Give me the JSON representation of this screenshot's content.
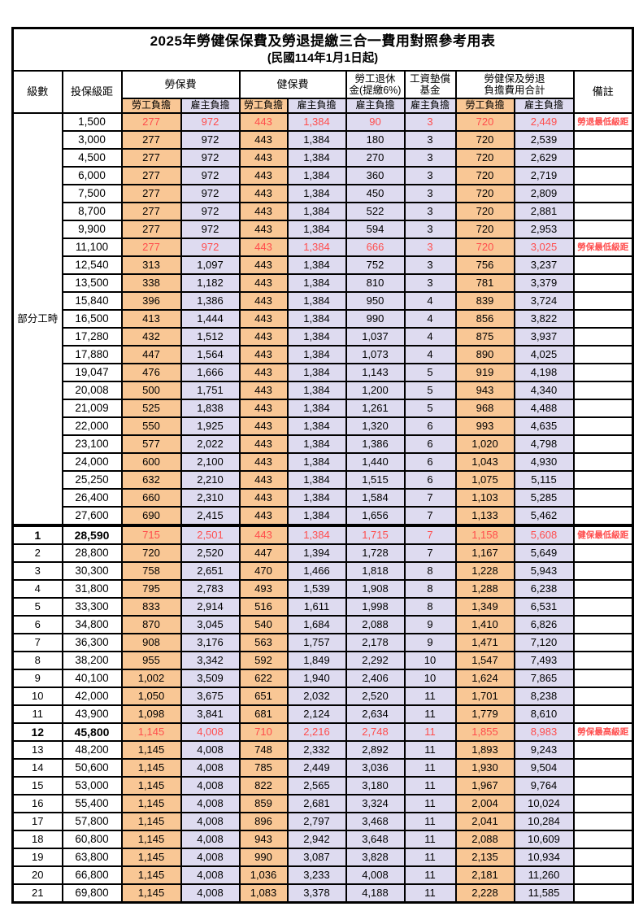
{
  "title": "2025年勞健保保費及勞退提繳三合一費用對照參考用表",
  "subtitle": "(民國114年1月1日起)",
  "header": {
    "level": "級數",
    "bracket": "投保級距",
    "labor_ins": "勞保費",
    "health_ins": "健保費",
    "pension_l1": "勞工退休",
    "pension_l2": "金(提繳6%)",
    "wage_fund_l1": "工資墊償",
    "wage_fund_l2": "基金",
    "total_l1": "勞健保及勞退",
    "total_l2": "負擔費用合計",
    "note": "備註",
    "sub_employee": "勞工負擔",
    "sub_employer": "雇主負擔"
  },
  "colors": {
    "employee_bg": "#F9C795",
    "employer_bg": "#DEDBF0",
    "highlight_text": "#FF4D4D"
  },
  "table": {
    "part_time_label": "部分工時",
    "part_time_rowspan": 23,
    "rows": [
      {
        "level": "",
        "bracket": "1,500",
        "values": [
          "277",
          "972",
          "443",
          "1,384",
          "90",
          "3",
          "720",
          "2,449"
        ],
        "note": "勞退最低級距",
        "highlight": true
      },
      {
        "level": "",
        "bracket": "3,000",
        "values": [
          "277",
          "972",
          "443",
          "1,384",
          "180",
          "3",
          "720",
          "2,539"
        ],
        "note": "",
        "highlight": false
      },
      {
        "level": "",
        "bracket": "4,500",
        "values": [
          "277",
          "972",
          "443",
          "1,384",
          "270",
          "3",
          "720",
          "2,629"
        ],
        "note": "",
        "highlight": false
      },
      {
        "level": "",
        "bracket": "6,000",
        "values": [
          "277",
          "972",
          "443",
          "1,384",
          "360",
          "3",
          "720",
          "2,719"
        ],
        "note": "",
        "highlight": false
      },
      {
        "level": "",
        "bracket": "7,500",
        "values": [
          "277",
          "972",
          "443",
          "1,384",
          "450",
          "3",
          "720",
          "2,809"
        ],
        "note": "",
        "highlight": false
      },
      {
        "level": "",
        "bracket": "8,700",
        "values": [
          "277",
          "972",
          "443",
          "1,384",
          "522",
          "3",
          "720",
          "2,881"
        ],
        "note": "",
        "highlight": false
      },
      {
        "level": "",
        "bracket": "9,900",
        "values": [
          "277",
          "972",
          "443",
          "1,384",
          "594",
          "3",
          "720",
          "2,953"
        ],
        "note": "",
        "highlight": false
      },
      {
        "level": "",
        "bracket": "11,100",
        "values": [
          "277",
          "972",
          "443",
          "1,384",
          "666",
          "3",
          "720",
          "3,025"
        ],
        "note": "勞保最低級距",
        "highlight": true
      },
      {
        "level": "",
        "bracket": "12,540",
        "values": [
          "313",
          "1,097",
          "443",
          "1,384",
          "752",
          "3",
          "756",
          "3,237"
        ],
        "note": "",
        "highlight": false
      },
      {
        "level": "",
        "bracket": "13,500",
        "values": [
          "338",
          "1,182",
          "443",
          "1,384",
          "810",
          "3",
          "781",
          "3,379"
        ],
        "note": "",
        "highlight": false
      },
      {
        "level": "",
        "bracket": "15,840",
        "values": [
          "396",
          "1,386",
          "443",
          "1,384",
          "950",
          "4",
          "839",
          "3,724"
        ],
        "note": "",
        "highlight": false
      },
      {
        "level": "",
        "bracket": "16,500",
        "values": [
          "413",
          "1,444",
          "443",
          "1,384",
          "990",
          "4",
          "856",
          "3,822"
        ],
        "note": "",
        "highlight": false
      },
      {
        "level": "",
        "bracket": "17,280",
        "values": [
          "432",
          "1,512",
          "443",
          "1,384",
          "1,037",
          "4",
          "875",
          "3,937"
        ],
        "note": "",
        "highlight": false
      },
      {
        "level": "",
        "bracket": "17,880",
        "values": [
          "447",
          "1,564",
          "443",
          "1,384",
          "1,073",
          "4",
          "890",
          "4,025"
        ],
        "note": "",
        "highlight": false
      },
      {
        "level": "",
        "bracket": "19,047",
        "values": [
          "476",
          "1,666",
          "443",
          "1,384",
          "1,143",
          "5",
          "919",
          "4,198"
        ],
        "note": "",
        "highlight": false
      },
      {
        "level": "",
        "bracket": "20,008",
        "values": [
          "500",
          "1,751",
          "443",
          "1,384",
          "1,200",
          "5",
          "943",
          "4,340"
        ],
        "note": "",
        "highlight": false
      },
      {
        "level": "",
        "bracket": "21,009",
        "values": [
          "525",
          "1,838",
          "443",
          "1,384",
          "1,261",
          "5",
          "968",
          "4,488"
        ],
        "note": "",
        "highlight": false
      },
      {
        "level": "",
        "bracket": "22,000",
        "values": [
          "550",
          "1,925",
          "443",
          "1,384",
          "1,320",
          "6",
          "993",
          "4,635"
        ],
        "note": "",
        "highlight": false
      },
      {
        "level": "",
        "bracket": "23,100",
        "values": [
          "577",
          "2,022",
          "443",
          "1,384",
          "1,386",
          "6",
          "1,020",
          "4,798"
        ],
        "note": "",
        "highlight": false
      },
      {
        "level": "",
        "bracket": "24,000",
        "values": [
          "600",
          "2,100",
          "443",
          "1,384",
          "1,440",
          "6",
          "1,043",
          "4,930"
        ],
        "note": "",
        "highlight": false
      },
      {
        "level": "",
        "bracket": "25,250",
        "values": [
          "632",
          "2,210",
          "443",
          "1,384",
          "1,515",
          "6",
          "1,075",
          "5,115"
        ],
        "note": "",
        "highlight": false
      },
      {
        "level": "",
        "bracket": "26,400",
        "values": [
          "660",
          "2,310",
          "443",
          "1,384",
          "1,584",
          "7",
          "1,103",
          "5,285"
        ],
        "note": "",
        "highlight": false
      },
      {
        "level": "",
        "bracket": "27,600",
        "values": [
          "690",
          "2,415",
          "443",
          "1,384",
          "1,656",
          "7",
          "1,133",
          "5,462"
        ],
        "note": "",
        "highlight": false
      },
      {
        "level": "1",
        "bracket": "28,590",
        "values": [
          "715",
          "2,501",
          "443",
          "1,384",
          "1,715",
          "7",
          "1,158",
          "5,608"
        ],
        "note": "健保最低級距",
        "highlight": true,
        "section_start": true
      },
      {
        "level": "2",
        "bracket": "28,800",
        "values": [
          "720",
          "2,520",
          "447",
          "1,394",
          "1,728",
          "7",
          "1,167",
          "5,649"
        ],
        "note": "",
        "highlight": false
      },
      {
        "level": "3",
        "bracket": "30,300",
        "values": [
          "758",
          "2,651",
          "470",
          "1,466",
          "1,818",
          "8",
          "1,228",
          "5,943"
        ],
        "note": "",
        "highlight": false
      },
      {
        "level": "4",
        "bracket": "31,800",
        "values": [
          "795",
          "2,783",
          "493",
          "1,539",
          "1,908",
          "8",
          "1,288",
          "6,238"
        ],
        "note": "",
        "highlight": false
      },
      {
        "level": "5",
        "bracket": "33,300",
        "values": [
          "833",
          "2,914",
          "516",
          "1,611",
          "1,998",
          "8",
          "1,349",
          "6,531"
        ],
        "note": "",
        "highlight": false
      },
      {
        "level": "6",
        "bracket": "34,800",
        "values": [
          "870",
          "3,045",
          "540",
          "1,684",
          "2,088",
          "9",
          "1,410",
          "6,826"
        ],
        "note": "",
        "highlight": false
      },
      {
        "level": "7",
        "bracket": "36,300",
        "values": [
          "908",
          "3,176",
          "563",
          "1,757",
          "2,178",
          "9",
          "1,471",
          "7,120"
        ],
        "note": "",
        "highlight": false
      },
      {
        "level": "8",
        "bracket": "38,200",
        "values": [
          "955",
          "3,342",
          "592",
          "1,849",
          "2,292",
          "10",
          "1,547",
          "7,493"
        ],
        "note": "",
        "highlight": false
      },
      {
        "level": "9",
        "bracket": "40,100",
        "values": [
          "1,002",
          "3,509",
          "622",
          "1,940",
          "2,406",
          "10",
          "1,624",
          "7,865"
        ],
        "note": "",
        "highlight": false
      },
      {
        "level": "10",
        "bracket": "42,000",
        "values": [
          "1,050",
          "3,675",
          "651",
          "2,032",
          "2,520",
          "11",
          "1,701",
          "8,238"
        ],
        "note": "",
        "highlight": false
      },
      {
        "level": "11",
        "bracket": "43,900",
        "values": [
          "1,098",
          "3,841",
          "681",
          "2,124",
          "2,634",
          "11",
          "1,779",
          "8,610"
        ],
        "note": "",
        "highlight": false
      },
      {
        "level": "12",
        "bracket": "45,800",
        "values": [
          "1,145",
          "4,008",
          "710",
          "2,216",
          "2,748",
          "11",
          "1,855",
          "8,983"
        ],
        "note": "勞保最高級距",
        "highlight": true
      },
      {
        "level": "13",
        "bracket": "48,200",
        "values": [
          "1,145",
          "4,008",
          "748",
          "2,332",
          "2,892",
          "11",
          "1,893",
          "9,243"
        ],
        "note": "",
        "highlight": false
      },
      {
        "level": "14",
        "bracket": "50,600",
        "values": [
          "1,145",
          "4,008",
          "785",
          "2,449",
          "3,036",
          "11",
          "1,930",
          "9,504"
        ],
        "note": "",
        "highlight": false
      },
      {
        "level": "15",
        "bracket": "53,000",
        "values": [
          "1,145",
          "4,008",
          "822",
          "2,565",
          "3,180",
          "11",
          "1,967",
          "9,764"
        ],
        "note": "",
        "highlight": false
      },
      {
        "level": "16",
        "bracket": "55,400",
        "values": [
          "1,145",
          "4,008",
          "859",
          "2,681",
          "3,324",
          "11",
          "2,004",
          "10,024"
        ],
        "note": "",
        "highlight": false
      },
      {
        "level": "17",
        "bracket": "57,800",
        "values": [
          "1,145",
          "4,008",
          "896",
          "2,797",
          "3,468",
          "11",
          "2,041",
          "10,284"
        ],
        "note": "",
        "highlight": false
      },
      {
        "level": "18",
        "bracket": "60,800",
        "values": [
          "1,145",
          "4,008",
          "943",
          "2,942",
          "3,648",
          "11",
          "2,088",
          "10,609"
        ],
        "note": "",
        "highlight": false
      },
      {
        "level": "19",
        "bracket": "63,800",
        "values": [
          "1,145",
          "4,008",
          "990",
          "3,087",
          "3,828",
          "11",
          "2,135",
          "10,934"
        ],
        "note": "",
        "highlight": false
      },
      {
        "level": "20",
        "bracket": "66,800",
        "values": [
          "1,145",
          "4,008",
          "1,036",
          "3,233",
          "4,008",
          "11",
          "2,181",
          "11,260"
        ],
        "note": "",
        "highlight": false
      },
      {
        "level": "21",
        "bracket": "69,800",
        "values": [
          "1,145",
          "4,008",
          "1,083",
          "3,378",
          "4,188",
          "11",
          "2,228",
          "11,585"
        ],
        "note": "",
        "highlight": false
      }
    ]
  }
}
